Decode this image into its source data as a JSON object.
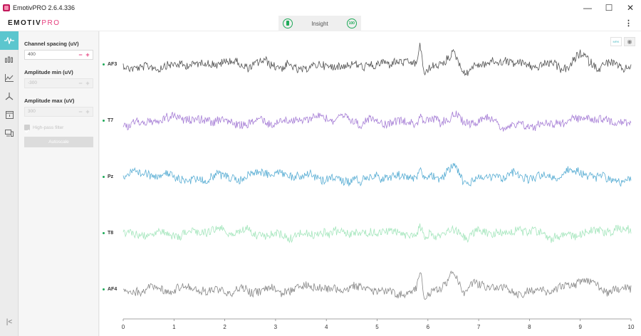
{
  "window": {
    "title": "EmotivPRO 2.6.4.336",
    "controls": {
      "minimize": "—",
      "maximize": "☐",
      "close": "✕"
    }
  },
  "header": {
    "brand_main": "EMOTIV",
    "brand_accent": "PRO",
    "headset_name": "Insight",
    "quality_text": "100",
    "menu_icon": "kebab-menu-icon"
  },
  "sidebar": {
    "items": [
      {
        "icon": "raw-eeg-icon",
        "active": true
      },
      {
        "icon": "band-power-icon",
        "active": false
      },
      {
        "icon": "performance-metrics-icon",
        "active": false
      },
      {
        "icon": "motion-icon",
        "active": false
      },
      {
        "icon": "recordings-icon",
        "active": false
      },
      {
        "icon": "devices-icon",
        "active": false
      }
    ],
    "collapse_label": "|<"
  },
  "settings": {
    "channel_spacing": {
      "label": "Channel spacing (uV)",
      "value": "400"
    },
    "amplitude_min": {
      "label": "Amplitude min (uV)",
      "value": "-300"
    },
    "amplitude_max": {
      "label": "Amplitude max (uV)",
      "value": "300"
    },
    "high_pass": {
      "label": "High-pass filter",
      "checked": true
    },
    "autoscale_label": "Autoscale",
    "minus": "−",
    "plus": "+"
  },
  "plot_tools": {
    "marker_label": "MRK",
    "eye_icon": "eye-icon"
  },
  "chart_data": {
    "type": "line",
    "x_ticks": [
      "0",
      "1",
      "2",
      "3",
      "4",
      "5",
      "6",
      "7",
      "8",
      "9",
      "10"
    ],
    "xlim": [
      0,
      10
    ],
    "series": [
      {
        "name": "AF3",
        "color": "#555555"
      },
      {
        "name": "T7",
        "color": "#a77fd6"
      },
      {
        "name": "Pz",
        "color": "#5aaed4"
      },
      {
        "name": "T8",
        "color": "#a5e6bd"
      },
      {
        "name": "AF4",
        "color": "#8a8a8a"
      }
    ]
  }
}
